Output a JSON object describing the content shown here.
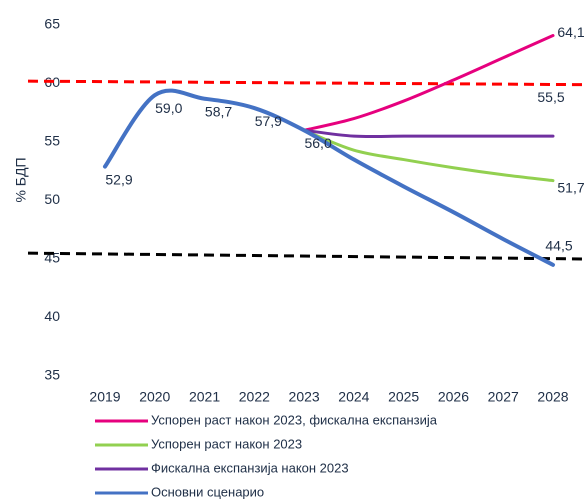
{
  "chart_data": {
    "type": "line",
    "ylabel": "% БДП",
    "x": [
      2019,
      2020,
      2021,
      2022,
      2023,
      2024,
      2025,
      2026,
      2027,
      2028
    ],
    "xlim": [
      2019,
      2028
    ],
    "ylim": [
      35,
      65
    ],
    "yticks": [
      35,
      40,
      45,
      50,
      55,
      60,
      65
    ],
    "grid": false,
    "legend": "bottom",
    "series": [
      {
        "name": "Успорен раст након 2023, фискална експанзија",
        "color": "#e6007e",
        "values": [
          null,
          null,
          null,
          null,
          56.0,
          57.0,
          58.5,
          60.3,
          62.2,
          64.1
        ],
        "value_labels": [
          null,
          null,
          null,
          null,
          null,
          null,
          null,
          null,
          null,
          "64,1"
        ]
      },
      {
        "name": "Успорен раст након 2023",
        "color": "#92d050",
        "values": [
          null,
          null,
          null,
          null,
          56.0,
          54.3,
          53.5,
          52.8,
          52.2,
          51.7
        ],
        "value_labels": [
          null,
          null,
          null,
          null,
          null,
          null,
          null,
          null,
          null,
          "51,7"
        ]
      },
      {
        "name": "Фискална експанзија након 2023",
        "color": "#7030a0",
        "values": [
          null,
          null,
          null,
          null,
          56.0,
          55.5,
          55.5,
          55.5,
          55.5,
          55.5
        ],
        "value_labels": [
          null,
          null,
          null,
          null,
          null,
          null,
          null,
          null,
          null,
          "55,5"
        ]
      },
      {
        "name": "Основни сценарио",
        "color": "#4472c4",
        "values": [
          52.9,
          59.0,
          58.7,
          57.9,
          56.0,
          53.5,
          51.2,
          49.0,
          46.7,
          44.5
        ],
        "value_labels": [
          "52,9",
          "59,0",
          "58,7",
          "57,9",
          "56,0",
          null,
          null,
          null,
          null,
          "44,5"
        ]
      }
    ],
    "reference_lines": [
      {
        "color": "#ff0000",
        "values": [
          60.2,
          59.9
        ]
      },
      {
        "color": "#000000",
        "values": [
          45.5,
          45.0
        ]
      }
    ]
  }
}
